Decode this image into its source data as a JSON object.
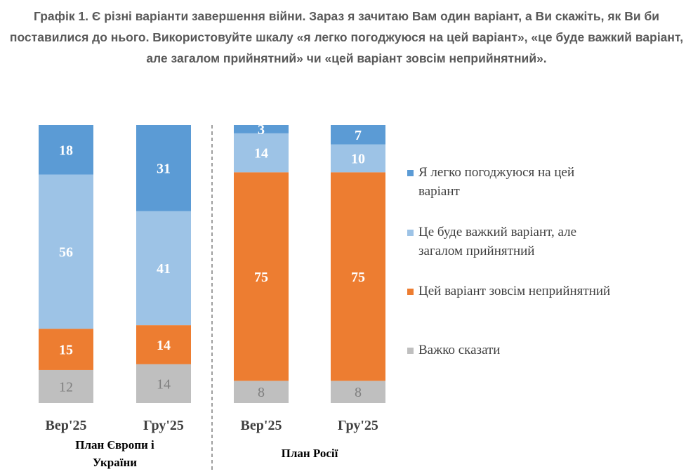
{
  "chart_data": {
    "type": "bar",
    "stacked": true,
    "title": "Графік 1. Є різні варіанти завершення війни. Зараз я зачитаю Вам один варіант, а Ви скажіть, як Ви би поставилися до нього. Використовуйте шкалу «я легко погоджуюся на цей варіант», «це буде важкий варіант, але загалом прийнятний» чи «цей варіант зовсім неприйнятний».",
    "categories": [
      "Вер'25",
      "Гру'25",
      "Вер'25",
      "Гру'25"
    ],
    "groups": [
      {
        "name": "План Європи і України",
        "line1": "План Європи і",
        "line2": "України",
        "categories": [
          0,
          1
        ]
      },
      {
        "name": "План Росії",
        "line1": "План Росії",
        "line2": "",
        "categories": [
          2,
          3
        ]
      }
    ],
    "series": [
      {
        "name": "Важко сказати",
        "color": "#BFBFBF",
        "label_color": "#7F7F7F",
        "values": [
          12,
          14,
          8,
          8
        ]
      },
      {
        "name": "Цей варіант зовсім неприйнятний",
        "color": "#ED7D31",
        "label_color": "#FFFFFF",
        "values": [
          15,
          14,
          75,
          75
        ]
      },
      {
        "name": "Це буде важкий варіант, але загалом прийнятний",
        "color": "#9DC3E6",
        "label_color": "#FFFFFF",
        "values": [
          56,
          41,
          14,
          10
        ]
      },
      {
        "name": "Я легко погоджуюся на цей варіант",
        "color": "#5B9BD5",
        "label_color": "#FFFFFF",
        "values": [
          18,
          31,
          3,
          7
        ]
      }
    ],
    "legend": [
      {
        "line1": "Я легко погоджуюся на цей",
        "line2": "варіант",
        "color": "#5B9BD5"
      },
      {
        "line1": "Це буде важкий варіант, але",
        "line2": "загалом прийнятний",
        "color": "#9DC3E6"
      },
      {
        "line1": "Цей варіант зовсім неприйнятний",
        "line2": "",
        "color": "#ED7D31"
      },
      {
        "line1": "Важко сказати",
        "line2": "",
        "color": "#BFBFBF"
      }
    ],
    "legend_position": "right",
    "ylim": [
      0,
      100
    ],
    "grid": false,
    "separator": "dashed line between groups"
  }
}
